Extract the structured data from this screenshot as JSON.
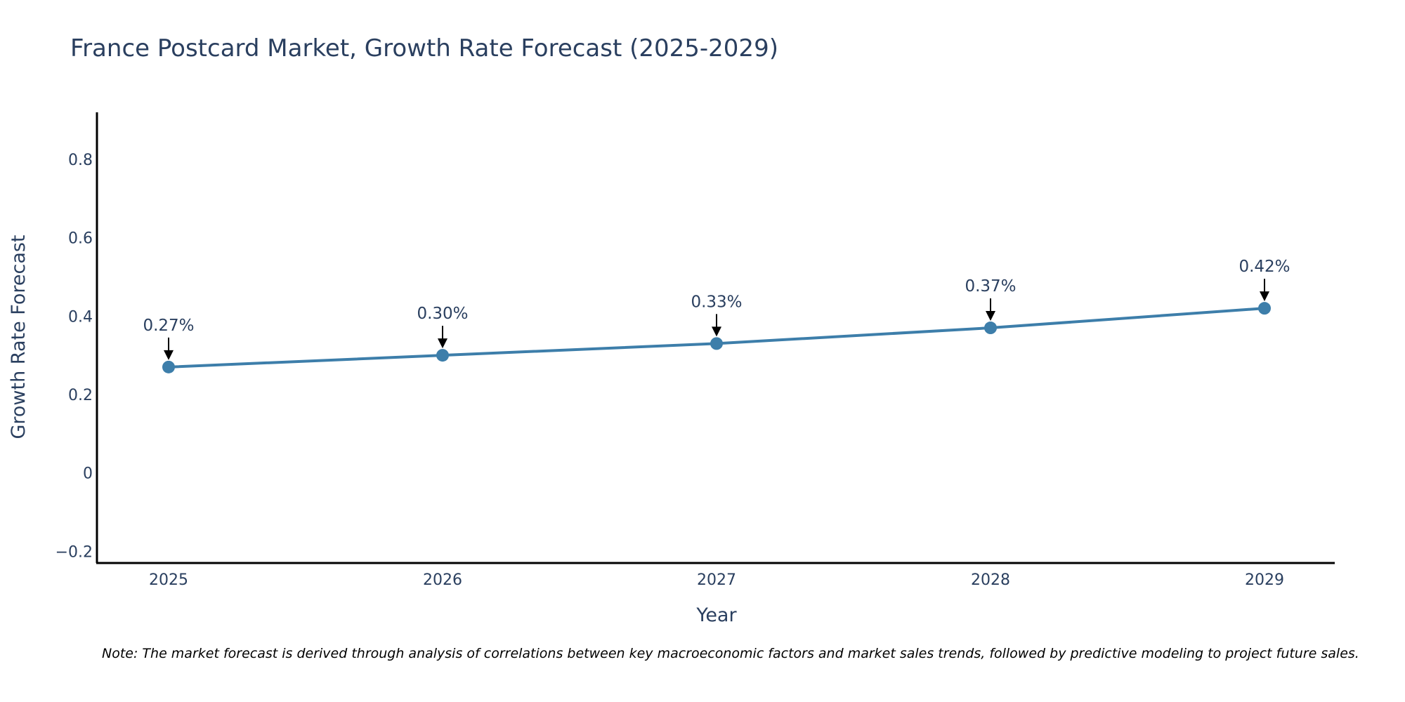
{
  "chart_data": {
    "type": "line",
    "title": "France Postcard Market, Growth Rate Forecast (2025-2029)",
    "xlabel": "Year",
    "ylabel": "Growth Rate Forecast",
    "categories": [
      "2025",
      "2026",
      "2027",
      "2028",
      "2029"
    ],
    "series": [
      {
        "name": "Growth Rate Forecast",
        "values": [
          0.27,
          0.3,
          0.33,
          0.37,
          0.42
        ],
        "color": "#3d7eaa"
      }
    ],
    "data_labels": [
      "0.27%",
      "0.30%",
      "0.33%",
      "0.37%",
      "0.42%"
    ],
    "y_ticks": [
      -0.2,
      0,
      0.2,
      0.4,
      0.6,
      0.8
    ],
    "y_tick_labels": [
      "−0.2",
      "0",
      "0.2",
      "0.4",
      "0.6",
      "0.8"
    ],
    "ylim": [
      -0.23,
      0.92
    ],
    "grid": false,
    "legend": "none"
  },
  "note": "Note: The market forecast is derived through analysis of correlations between key macroeconomic factors and market sales trends, followed by predictive modeling to project future sales."
}
